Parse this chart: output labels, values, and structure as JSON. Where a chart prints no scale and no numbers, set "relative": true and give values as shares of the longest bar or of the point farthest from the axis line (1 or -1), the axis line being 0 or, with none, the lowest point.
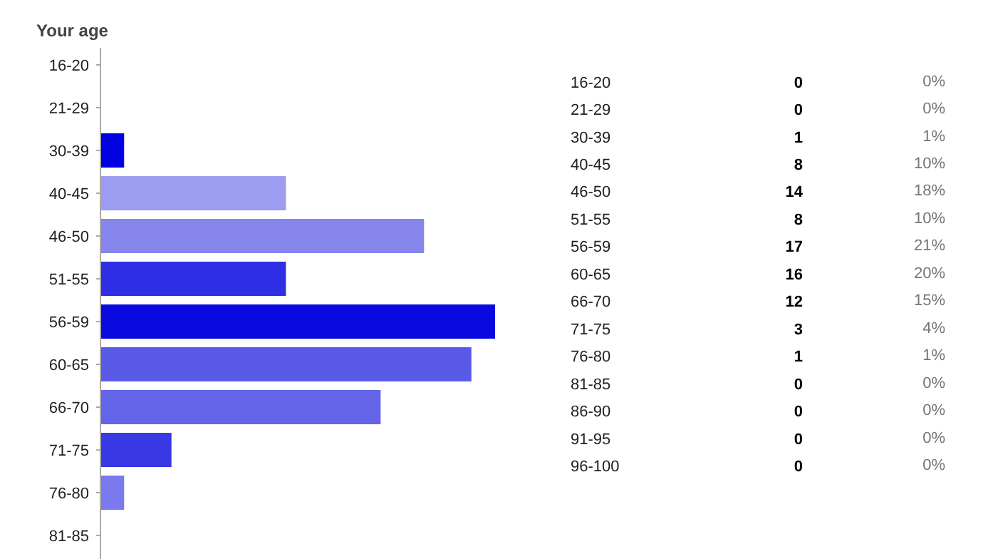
{
  "chart_data": [
    {
      "type": "bar",
      "orientation": "horizontal",
      "title": "Your age",
      "relative": true,
      "categories": [
        "16-20",
        "21-29",
        "30-39",
        "40-45",
        "46-50",
        "51-55",
        "56-59",
        "60-65",
        "66-70",
        "71-75",
        "76-80",
        "81-85"
      ],
      "values": [
        0,
        0,
        0.06,
        0.47,
        0.82,
        0.47,
        1,
        0.94,
        0.71,
        0.18,
        0.06,
        0
      ],
      "colors": [
        "#0000e0",
        "#0000e0",
        "#0000e0",
        "#9c9cf0",
        "#8585ec",
        "#2e2ee4",
        "#0a0ae0",
        "#5a5ae8",
        "#6464e8",
        "#3838e4",
        "#7a7aee",
        "#0000e0"
      ]
    },
    {
      "type": "other",
      "categories": [
        "16-20",
        "21-29",
        "30-39",
        "40-45",
        "46-50",
        "51-55",
        "56-59",
        "60-65",
        "66-70",
        "71-75",
        "76-80",
        "81-85",
        "86-90",
        "91-95",
        "96-100"
      ],
      "values": [
        0,
        0,
        1,
        8,
        14,
        8,
        17,
        16,
        12,
        3,
        1,
        0,
        0,
        0,
        0
      ],
      "data_labels": true,
      "annotations": [
        "0%",
        "0%",
        "1%",
        "10%",
        "18%",
        "10%",
        "21%",
        "20%",
        "15%",
        "4%",
        "1%",
        "0%",
        "0%",
        "0%",
        "0%"
      ]
    }
  ]
}
